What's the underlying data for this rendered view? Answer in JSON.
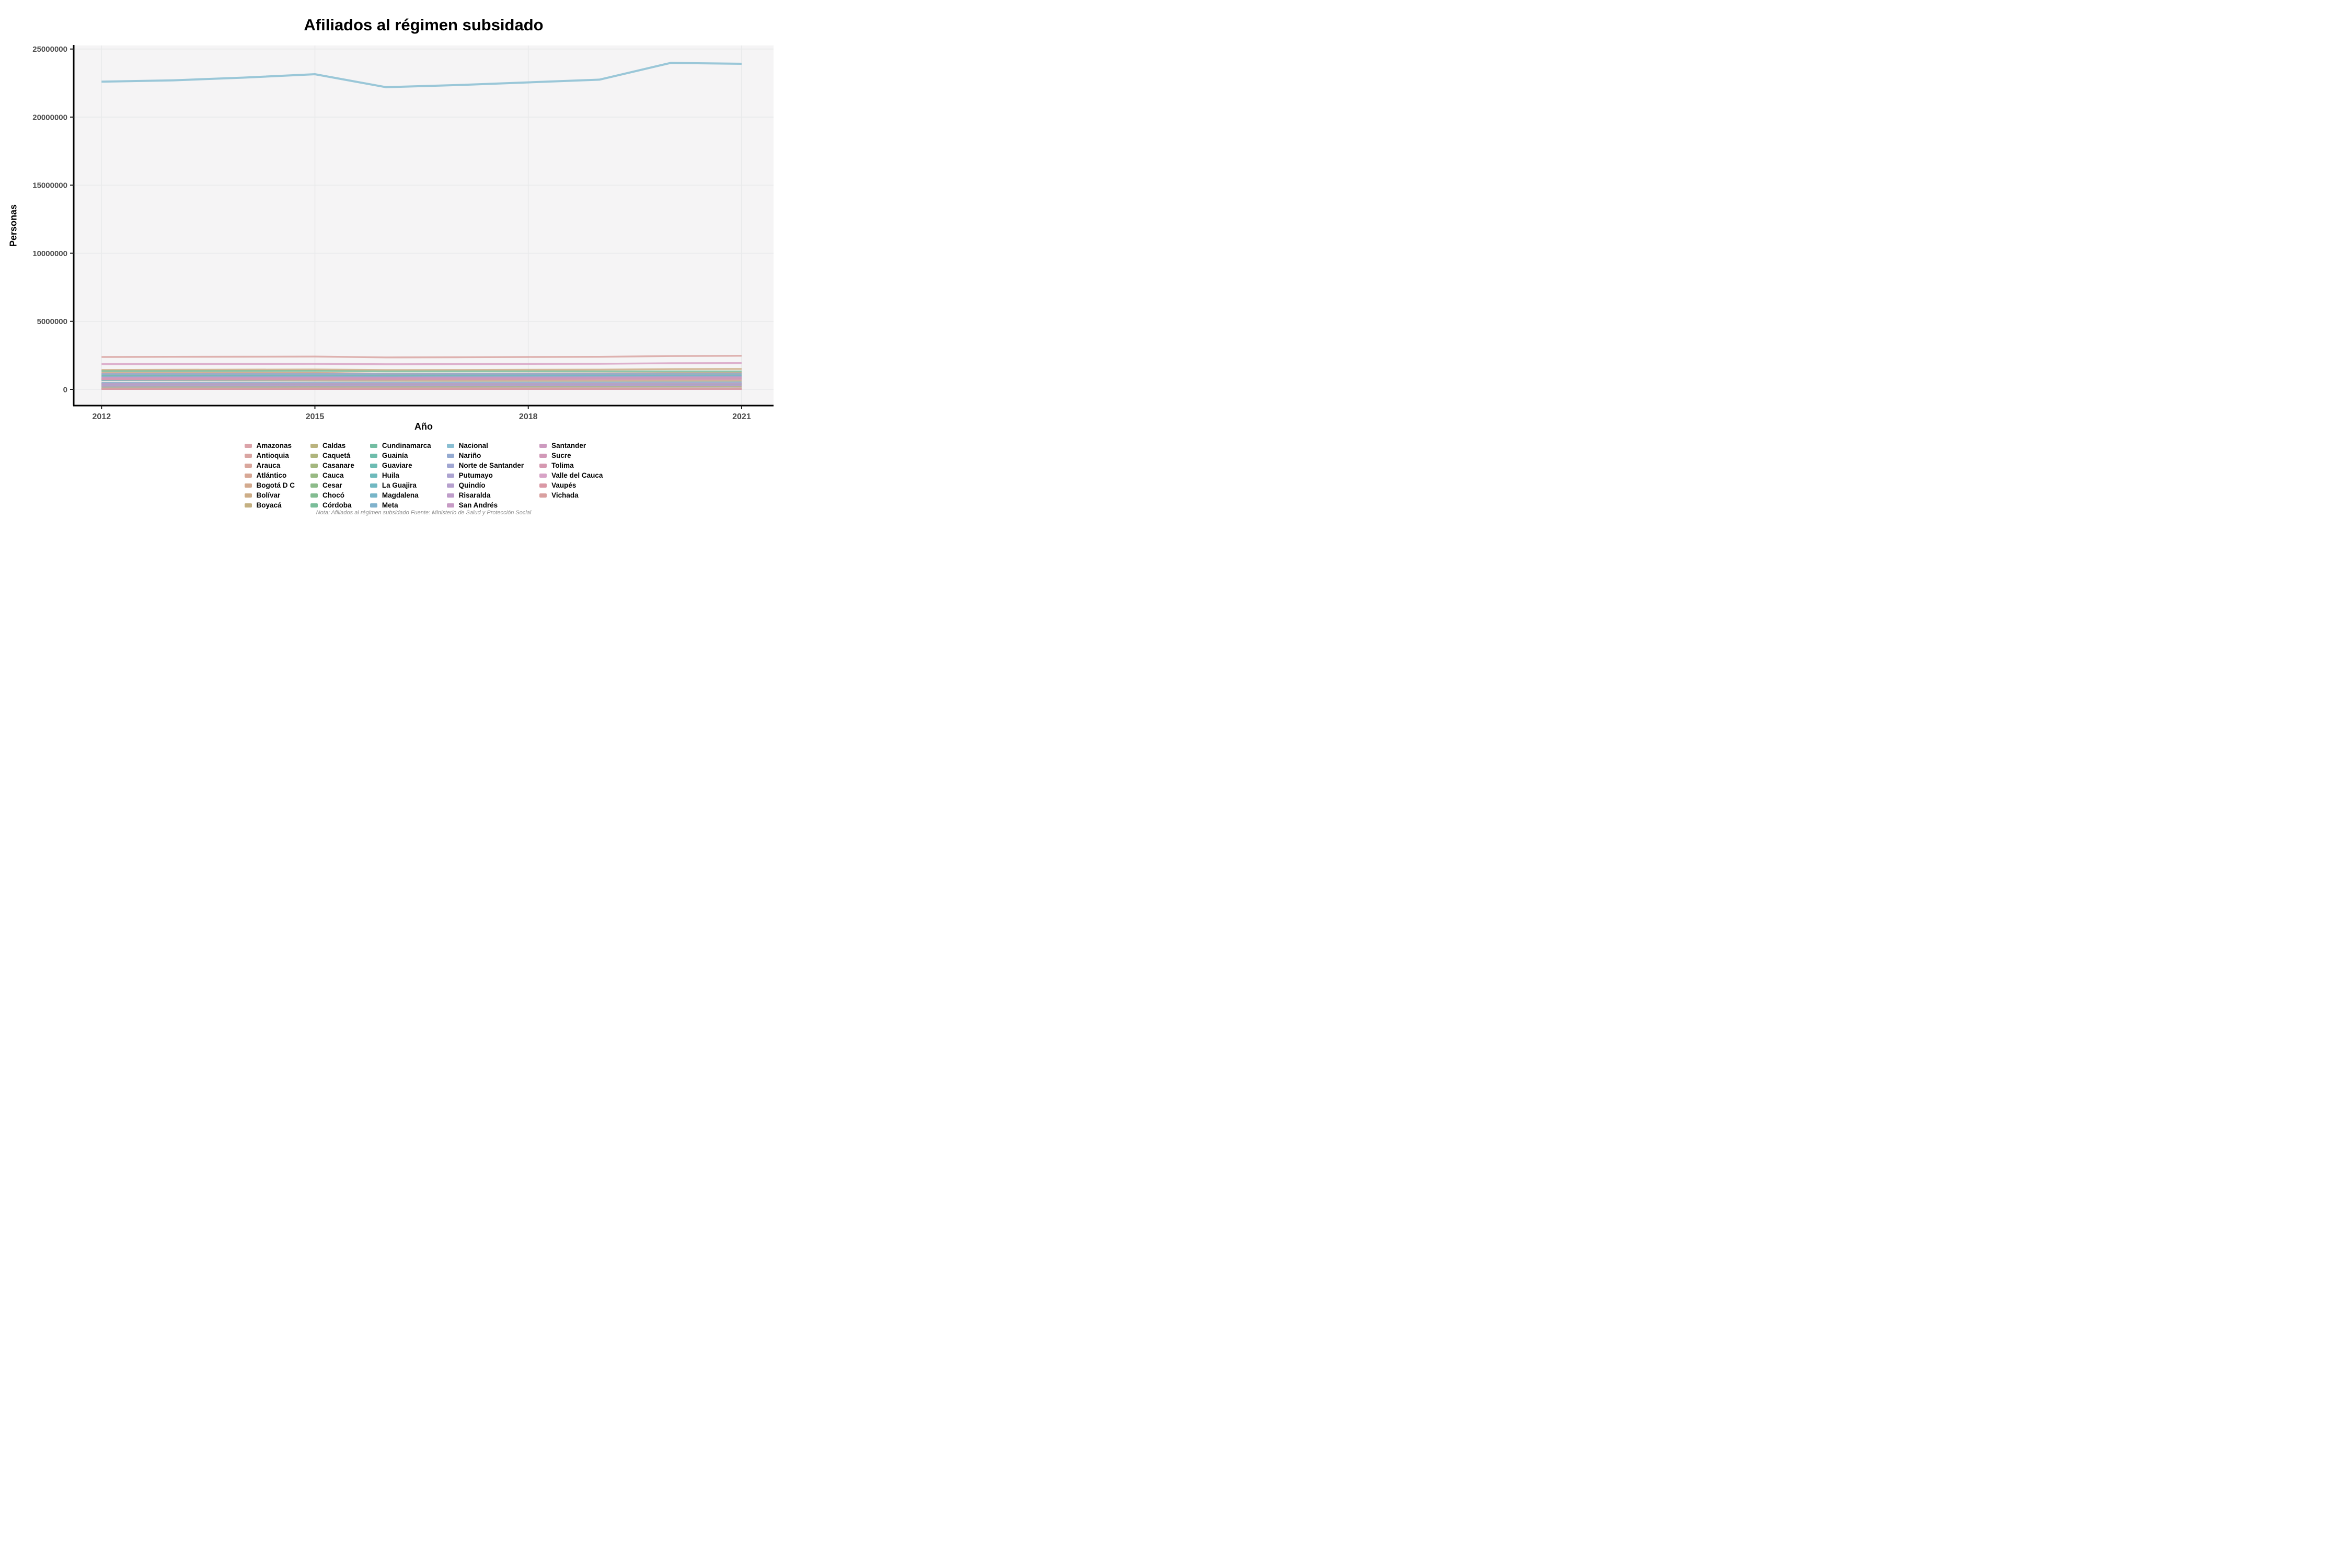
{
  "note": "Nota: Afiliados al régimen subsidado Fuente: Ministerio de Salud y Protección Social",
  "chart_data": {
    "type": "line",
    "title": "Afiliados al régimen subsidado",
    "xlabel": "Año",
    "ylabel": "Personas",
    "x": [
      2012,
      2013,
      2014,
      2015,
      2016,
      2017,
      2018,
      2019,
      2020,
      2021
    ],
    "x_ticks": [
      2012,
      2015,
      2018,
      2021
    ],
    "y_ticks": [
      0,
      5000000,
      10000000,
      15000000,
      20000000,
      25000000
    ],
    "ylim": [
      0,
      25000000
    ],
    "grid": true,
    "legend_position": "bottom",
    "panel_bg": "#f5f4f5",
    "grid_color": "#e9eaeb",
    "axis_color": "#000000",
    "tick_label_color": "#4a4a4a",
    "series": [
      {
        "name": "Amazonas",
        "color": "#dba3a9",
        "values": [
          50000,
          51000,
          52000,
          53000,
          54000,
          55000,
          56000,
          57000,
          58000,
          59000
        ]
      },
      {
        "name": "Antioquia",
        "color": "#d9a5a2",
        "values": [
          2380000,
          2390000,
          2400000,
          2410000,
          2350000,
          2360000,
          2380000,
          2390000,
          2450000,
          2470000
        ]
      },
      {
        "name": "Arauca",
        "color": "#d9a69c",
        "values": [
          175000,
          180000,
          185000,
          190000,
          195000,
          200000,
          205000,
          210000,
          215000,
          218000
        ]
      },
      {
        "name": "Atlántico",
        "color": "#d7a795",
        "values": [
          1170000,
          1180000,
          1190000,
          1200000,
          1150000,
          1160000,
          1170000,
          1180000,
          1200000,
          1210000
        ]
      },
      {
        "name": "Bogotá D C",
        "color": "#d3aa8e",
        "values": [
          1240000,
          1230000,
          1220000,
          1210000,
          1150000,
          1140000,
          1130000,
          1120000,
          1180000,
          1200000
        ]
      },
      {
        "name": "Bolívar",
        "color": "#cdad87",
        "values": [
          1430000,
          1440000,
          1450000,
          1460000,
          1420000,
          1430000,
          1440000,
          1450000,
          1490000,
          1500000
        ]
      },
      {
        "name": "Boyacá",
        "color": "#c4b081",
        "values": [
          670000,
          665000,
          660000,
          655000,
          640000,
          635000,
          630000,
          625000,
          630000,
          628000
        ]
      },
      {
        "name": "Caldas",
        "color": "#bab37e",
        "values": [
          440000,
          438000,
          436000,
          434000,
          425000,
          422000,
          420000,
          418000,
          422000,
          420000
        ]
      },
      {
        "name": "Caquetá",
        "color": "#afb57d",
        "values": [
          330000,
          335000,
          340000,
          345000,
          340000,
          345000,
          350000,
          352000,
          358000,
          360000
        ]
      },
      {
        "name": "Casanare",
        "color": "#a4b77f",
        "values": [
          220000,
          225000,
          230000,
          235000,
          238000,
          242000,
          246000,
          250000,
          256000,
          260000
        ]
      },
      {
        "name": "Cauca",
        "color": "#98b983",
        "values": [
          1060000,
          1070000,
          1080000,
          1090000,
          1070000,
          1080000,
          1085000,
          1090000,
          1100000,
          1105000
        ]
      },
      {
        "name": "Cesar",
        "color": "#8dbb8a",
        "values": [
          800000,
          810000,
          820000,
          830000,
          825000,
          835000,
          845000,
          855000,
          880000,
          890000
        ]
      },
      {
        "name": "Chocó",
        "color": "#83bc91",
        "values": [
          390000,
          395000,
          400000,
          405000,
          400000,
          405000,
          410000,
          415000,
          425000,
          430000
        ]
      },
      {
        "name": "Córdoba",
        "color": "#7abd99",
        "values": [
          1340000,
          1345000,
          1350000,
          1355000,
          1320000,
          1325000,
          1330000,
          1320000,
          1325000,
          1320000
        ]
      },
      {
        "name": "Cundinamarca",
        "color": "#73bda2",
        "values": [
          970000,
          975000,
          980000,
          985000,
          970000,
          975000,
          985000,
          990000,
          1010000,
          1020000
        ]
      },
      {
        "name": "Guainía",
        "color": "#6fbdab",
        "values": [
          35000,
          36000,
          37000,
          38000,
          38500,
          39000,
          40000,
          40500,
          41500,
          42000
        ]
      },
      {
        "name": "Guaviare",
        "color": "#6dbcb3",
        "values": [
          75000,
          76000,
          77000,
          78000,
          78500,
          79000,
          80000,
          80500,
          81500,
          82000
        ]
      },
      {
        "name": "Huila",
        "color": "#6ebabb",
        "values": [
          760000,
          765000,
          770000,
          775000,
          765000,
          770000,
          772000,
          775000,
          780000,
          782000
        ]
      },
      {
        "name": "La Guajira",
        "color": "#71b8c2",
        "values": [
          680000,
          695000,
          710000,
          725000,
          730000,
          745000,
          760000,
          775000,
          795000,
          800000
        ]
      },
      {
        "name": "Magdalena",
        "color": "#77b5c8",
        "values": [
          950000,
          955000,
          960000,
          965000,
          955000,
          960000,
          970000,
          975000,
          995000,
          1000000
        ]
      },
      {
        "name": "Meta",
        "color": "#80b2cc",
        "values": [
          480000,
          485000,
          490000,
          495000,
          492000,
          497000,
          502000,
          507000,
          515000,
          520000
        ]
      },
      {
        "name": "Nacional",
        "color": "#89bed2",
        "values": [
          22600000,
          22700000,
          22900000,
          23150000,
          22200000,
          22350000,
          22550000,
          22750000,
          23980000,
          23920000
        ]
      },
      {
        "name": "Nariño",
        "color": "#94aad1",
        "values": [
          1120000,
          1125000,
          1130000,
          1135000,
          1120000,
          1125000,
          1130000,
          1135000,
          1145000,
          1150000
        ]
      },
      {
        "name": "Norte de Santander",
        "color": "#a0a6d2",
        "values": [
          880000,
          885000,
          890000,
          895000,
          890000,
          900000,
          910000,
          915000,
          935000,
          940000
        ]
      },
      {
        "name": "Putumayo",
        "color": "#aca3d1",
        "values": [
          270000,
          275000,
          280000,
          285000,
          287000,
          292000,
          297000,
          300000,
          308000,
          310000
        ]
      },
      {
        "name": "Quindío",
        "color": "#b6a0ce",
        "values": [
          280000,
          281000,
          282000,
          283000,
          282000,
          284000,
          286000,
          287000,
          289000,
          290000
        ]
      },
      {
        "name": "Risaralda",
        "color": "#bf9dca",
        "values": [
          410000,
          413000,
          416000,
          419000,
          418000,
          422000,
          426000,
          430000,
          437000,
          440000
        ]
      },
      {
        "name": "San Andrés",
        "color": "#c79bc5",
        "values": [
          25000,
          25300,
          25600,
          25900,
          26200,
          26500,
          26800,
          27100,
          27600,
          28000
        ]
      },
      {
        "name": "Santander",
        "color": "#cd9abf",
        "values": [
          860000,
          862000,
          864000,
          866000,
          860000,
          864000,
          868000,
          870000,
          877000,
          880000
        ]
      },
      {
        "name": "Sucre",
        "color": "#d299b8",
        "values": [
          760000,
          765000,
          770000,
          775000,
          770000,
          775000,
          780000,
          785000,
          795000,
          800000
        ]
      },
      {
        "name": "Tolima",
        "color": "#d699b1",
        "values": [
          740000,
          738000,
          736000,
          734000,
          726000,
          724000,
          722000,
          720000,
          727000,
          730000
        ]
      },
      {
        "name": "Valle del Cauca",
        "color": "#d8a3c6",
        "values": [
          1860000,
          1865000,
          1870000,
          1875000,
          1850000,
          1860000,
          1870000,
          1880000,
          1920000,
          1930000
        ]
      },
      {
        "name": "Vaupés",
        "color": "#da98a5",
        "values": [
          28000,
          28400,
          28800,
          29200,
          29600,
          30000,
          30400,
          30800,
          31400,
          32000
        ]
      },
      {
        "name": "Vichada",
        "color": "#d9a0a0",
        "values": [
          65000,
          66000,
          67000,
          68000,
          69000,
          70000,
          71000,
          72000,
          74000,
          75000
        ]
      }
    ]
  }
}
